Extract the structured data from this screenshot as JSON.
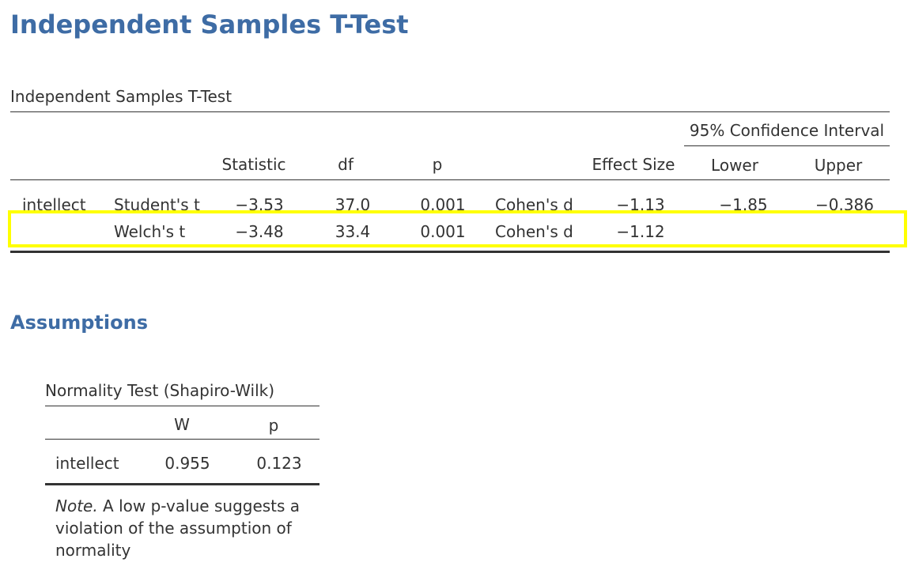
{
  "main_title": "Independent Samples T-Test",
  "ttest": {
    "caption": "Independent Samples T-Test",
    "ci_header": "95% Confidence Interval",
    "columns": {
      "statistic": "Statistic",
      "df": "df",
      "p": "p",
      "effect_size": "Effect Size",
      "lower": "Lower",
      "upper": "Upper"
    },
    "rows": [
      {
        "variable": "intellect",
        "test": "Student's t",
        "statistic": "−3.53",
        "df": "37.0",
        "p": "0.001",
        "effect_type": "Cohen's d",
        "effect_size": "−1.13",
        "lower": "−1.85",
        "upper": "−0.386"
      },
      {
        "variable": "",
        "test": "Welch's t",
        "statistic": "−3.48",
        "df": "33.4",
        "p": "0.001",
        "effect_type": "Cohen's d",
        "effect_size": "−1.12",
        "lower": "",
        "upper": ""
      }
    ],
    "highlight_color": "#ffff00"
  },
  "assumptions_title": "Assumptions",
  "normality": {
    "caption": "Normality Test (Shapiro-Wilk)",
    "columns": {
      "w": "W",
      "p": "p"
    },
    "rows": [
      {
        "variable": "intellect",
        "w": "0.955",
        "p": "0.123"
      }
    ],
    "note_label": "Note.",
    "note_text": " A low p-value suggests a violation of the assumption of normality"
  },
  "colors": {
    "heading": "#3e6ca5",
    "text": "#333333"
  }
}
